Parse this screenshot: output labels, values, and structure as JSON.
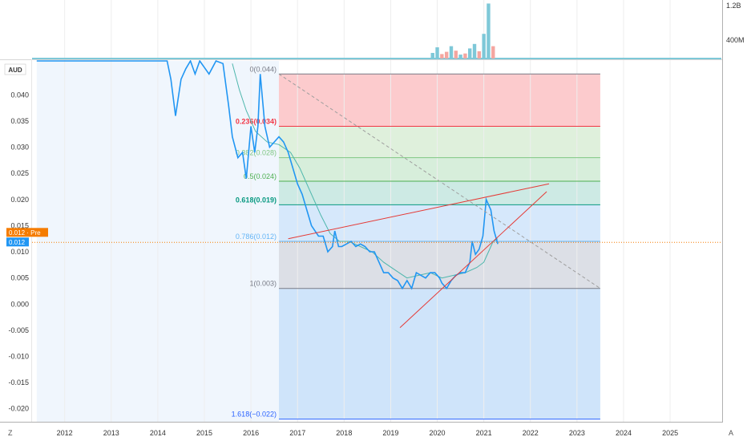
{
  "chart_data": {
    "type": "line",
    "currency": "AUD",
    "x_ticks": [
      "2012",
      "2013",
      "2014",
      "2015",
      "2016",
      "2017",
      "2018",
      "2019",
      "2020",
      "2021",
      "2022",
      "2023",
      "2024",
      "2025"
    ],
    "x_range": [
      2011.3,
      2026.1
    ],
    "y_ticks": [
      "0.040",
      "0.035",
      "0.030",
      "0.025",
      "0.020",
      "0.015",
      "0.010",
      "0.005",
      "0.000",
      "-0.005",
      "-0.010",
      "-0.015",
      "-0.020"
    ],
    "y_range": [
      -0.0225,
      0.0465
    ],
    "price_series": {
      "color": "#2196f3",
      "points": [
        [
          2011.4,
          0.05
        ],
        [
          2013.0,
          0.05
        ],
        [
          2014.2,
          0.05
        ],
        [
          2014.28,
          0.043
        ],
        [
          2014.38,
          0.036
        ],
        [
          2014.5,
          0.043
        ],
        [
          2014.6,
          0.045
        ],
        [
          2014.7,
          0.047
        ],
        [
          2014.8,
          0.044
        ],
        [
          2014.9,
          0.047
        ],
        [
          2015.1,
          0.044
        ],
        [
          2015.25,
          0.047
        ],
        [
          2015.4,
          0.046
        ],
        [
          2015.52,
          0.038
        ],
        [
          2015.6,
          0.032
        ],
        [
          2015.72,
          0.028
        ],
        [
          2015.82,
          0.029
        ],
        [
          2015.9,
          0.024
        ],
        [
          2016.0,
          0.034
        ],
        [
          2016.08,
          0.029
        ],
        [
          2016.15,
          0.034
        ],
        [
          2016.2,
          0.044
        ],
        [
          2016.3,
          0.034
        ],
        [
          2016.4,
          0.03
        ],
        [
          2016.5,
          0.031
        ],
        [
          2016.6,
          0.032
        ],
        [
          2016.7,
          0.031
        ],
        [
          2016.8,
          0.029
        ],
        [
          2016.9,
          0.026
        ],
        [
          2017.0,
          0.023
        ],
        [
          2017.1,
          0.021
        ],
        [
          2017.2,
          0.018
        ],
        [
          2017.3,
          0.015
        ],
        [
          2017.45,
          0.013
        ],
        [
          2017.55,
          0.013
        ],
        [
          2017.65,
          0.01
        ],
        [
          2017.75,
          0.011
        ],
        [
          2017.8,
          0.014
        ],
        [
          2017.88,
          0.011
        ],
        [
          2017.95,
          0.011
        ],
        [
          2018.05,
          0.0115
        ],
        [
          2018.15,
          0.012
        ],
        [
          2018.25,
          0.011
        ],
        [
          2018.35,
          0.0115
        ],
        [
          2018.45,
          0.011
        ],
        [
          2018.55,
          0.01
        ],
        [
          2018.65,
          0.01
        ],
        [
          2018.75,
          0.008
        ],
        [
          2018.85,
          0.006
        ],
        [
          2018.95,
          0.006
        ],
        [
          2019.05,
          0.005
        ],
        [
          2019.15,
          0.0045
        ],
        [
          2019.25,
          0.003
        ],
        [
          2019.35,
          0.0045
        ],
        [
          2019.45,
          0.003
        ],
        [
          2019.55,
          0.006
        ],
        [
          2019.65,
          0.0055
        ],
        [
          2019.75,
          0.005
        ],
        [
          2019.85,
          0.006
        ],
        [
          2019.95,
          0.006
        ],
        [
          2020.05,
          0.005
        ],
        [
          2020.1,
          0.004
        ],
        [
          2020.2,
          0.003
        ],
        [
          2020.3,
          0.0045
        ],
        [
          2020.4,
          0.0055
        ],
        [
          2020.5,
          0.006
        ],
        [
          2020.6,
          0.006
        ],
        [
          2020.7,
          0.008
        ],
        [
          2020.75,
          0.012
        ],
        [
          2020.82,
          0.0095
        ],
        [
          2020.9,
          0.0105
        ],
        [
          2020.98,
          0.013
        ],
        [
          2021.05,
          0.02
        ],
        [
          2021.15,
          0.018
        ],
        [
          2021.22,
          0.014
        ],
        [
          2021.3,
          0.0115
        ]
      ]
    },
    "average_series": {
      "color": "#4db6ac",
      "points": [
        [
          2015.6,
          0.046
        ],
        [
          2015.75,
          0.041
        ],
        [
          2015.9,
          0.037
        ],
        [
          2016.1,
          0.033
        ],
        [
          2016.35,
          0.031
        ],
        [
          2016.6,
          0.0305
        ],
        [
          2016.85,
          0.029
        ],
        [
          2017.05,
          0.026
        ],
        [
          2017.25,
          0.022
        ],
        [
          2017.5,
          0.017
        ],
        [
          2017.7,
          0.0135
        ],
        [
          2017.9,
          0.012
        ],
        [
          2018.1,
          0.012
        ],
        [
          2018.35,
          0.011
        ],
        [
          2018.6,
          0.01
        ],
        [
          2018.85,
          0.008
        ],
        [
          2019.1,
          0.0065
        ],
        [
          2019.35,
          0.005
        ],
        [
          2019.6,
          0.0055
        ],
        [
          2019.85,
          0.006
        ],
        [
          2020.1,
          0.005
        ],
        [
          2020.35,
          0.0055
        ],
        [
          2020.6,
          0.006
        ],
        [
          2020.85,
          0.007
        ],
        [
          2021.0,
          0.008
        ],
        [
          2021.1,
          0.01
        ],
        [
          2021.2,
          0.012
        ],
        [
          2021.3,
          0.0125
        ]
      ]
    },
    "fibonacci": {
      "x_start": 2016.6,
      "x_end": 2023.5,
      "levels": [
        {
          "ratio": 0,
          "label": "0(0.044)",
          "price": 0.044,
          "color": "#787b86"
        },
        {
          "ratio": 0.236,
          "label": "0.236(0.034)",
          "price": 0.034,
          "color": "#f23645"
        },
        {
          "ratio": 0.382,
          "label": "0.382(0.028)",
          "price": 0.028,
          "color": "#81c784"
        },
        {
          "ratio": 0.5,
          "label": "0.5(0.024)",
          "price": 0.0235,
          "color": "#4caf50"
        },
        {
          "ratio": 0.618,
          "label": "0.618(0.019)",
          "price": 0.019,
          "color": "#089981"
        },
        {
          "ratio": 0.786,
          "label": "0.786(0.012)",
          "price": 0.012,
          "color": "#64b5f6"
        },
        {
          "ratio": 1,
          "label": "1(0.003)",
          "price": 0.003,
          "color": "#787b86"
        },
        {
          "ratio": 1.618,
          "label": "1.618(−0.022)",
          "price": -0.022,
          "color": "#2962ff"
        }
      ],
      "zone_colors": [
        "#fccbcd",
        "#dff0dc",
        "#d7eedb",
        "#cdeae4",
        "#d6e8fb",
        "#dcdfe6",
        "#cfe4fa"
      ]
    },
    "fib_trend_line": {
      "from": [
        2016.6,
        0.044
      ],
      "to": [
        2023.5,
        0.003
      ],
      "color": "#9e9e9e"
    },
    "trend_lines": [
      {
        "from": [
          2016.8,
          0.0125
        ],
        "to": [
          2022.4,
          0.023
        ],
        "color": "#e53935"
      },
      {
        "from": [
          2019.2,
          -0.0045
        ],
        "to": [
          2022.35,
          0.0215
        ],
        "color": "#e53935"
      }
    ],
    "shaded_background": {
      "x_start": 2011.4,
      "x_end": 2016.6,
      "color": "#f0f6fd"
    },
    "volume": {
      "labels": [
        "1.2B",
        "400M"
      ],
      "bars": [
        [
          2019.9,
          0.1,
          "#7ec8d8"
        ],
        [
          2020.0,
          0.2,
          "#7ec8d8"
        ],
        [
          2020.1,
          0.08,
          "#f4a6a0"
        ],
        [
          2020.2,
          0.12,
          "#f4a6a0"
        ],
        [
          2020.3,
          0.22,
          "#7ec8d8"
        ],
        [
          2020.4,
          0.14,
          "#f4a6a0"
        ],
        [
          2020.5,
          0.07,
          "#7ec8d8"
        ],
        [
          2020.6,
          0.09,
          "#f4a6a0"
        ],
        [
          2020.7,
          0.18,
          "#7ec8d8"
        ],
        [
          2020.8,
          0.26,
          "#7ec8d8"
        ],
        [
          2020.9,
          0.13,
          "#f4a6a0"
        ],
        [
          2021.0,
          0.44,
          "#7ec8d8"
        ],
        [
          2021.1,
          0.98,
          "#7ec8d8"
        ],
        [
          2021.2,
          0.22,
          "#f4a6a0"
        ]
      ]
    },
    "price_labels": [
      {
        "text": "0.012 · Pre",
        "color": "#f57c00"
      },
      {
        "text": "0.012",
        "color": "#2196f3"
      }
    ],
    "last_price": 0.0118,
    "corner_labels": {
      "left": "Z",
      "right": "A"
    }
  }
}
